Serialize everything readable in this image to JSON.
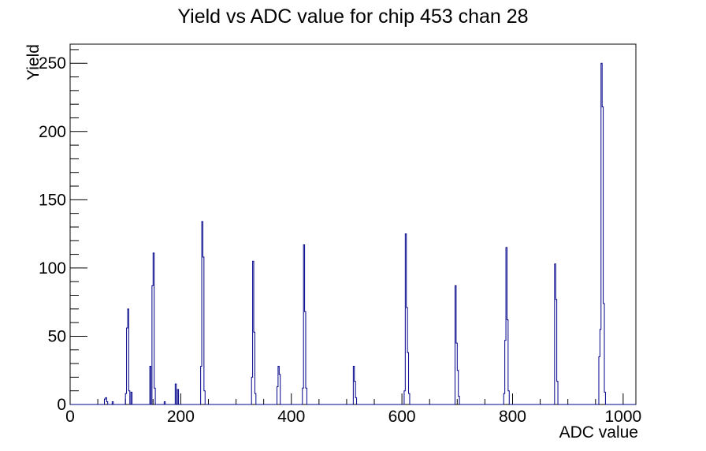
{
  "chart_data": {
    "type": "bar",
    "title": "Yield vs ADC value for chip 453 chan 28",
    "xlabel": "ADC value",
    "ylabel": "Yield",
    "xlim": [
      0,
      1023
    ],
    "ylim": [
      0,
      264
    ],
    "x_major_ticks": [
      0,
      200,
      400,
      600,
      800,
      1000
    ],
    "x_minor_tick_step": 50,
    "y_major_ticks": [
      0,
      50,
      100,
      150,
      200,
      250
    ],
    "y_minor_tick_step": 10,
    "grid": false,
    "legend": false,
    "bin_width": 2,
    "line_color": "#00008b",
    "axis_color": "#000000",
    "background_color": "#ffffff",
    "bins": [
      [
        62,
        4
      ],
      [
        64,
        5
      ],
      [
        66,
        2
      ],
      [
        76,
        2
      ],
      [
        100,
        8
      ],
      [
        102,
        56
      ],
      [
        104,
        70
      ],
      [
        106,
        10
      ],
      [
        110,
        9
      ],
      [
        144,
        28
      ],
      [
        148,
        87
      ],
      [
        150,
        111
      ],
      [
        152,
        12
      ],
      [
        170,
        2
      ],
      [
        190,
        15
      ],
      [
        194,
        11
      ],
      [
        236,
        28
      ],
      [
        238,
        134
      ],
      [
        240,
        108
      ],
      [
        242,
        10
      ],
      [
        328,
        20
      ],
      [
        330,
        105
      ],
      [
        332,
        53
      ],
      [
        334,
        8
      ],
      [
        374,
        13
      ],
      [
        376,
        28
      ],
      [
        378,
        22
      ],
      [
        420,
        12
      ],
      [
        422,
        117
      ],
      [
        424,
        68
      ],
      [
        426,
        12
      ],
      [
        512,
        28
      ],
      [
        514,
        17
      ],
      [
        516,
        5
      ],
      [
        604,
        10
      ],
      [
        606,
        125
      ],
      [
        608,
        71
      ],
      [
        610,
        38
      ],
      [
        612,
        8
      ],
      [
        696,
        87
      ],
      [
        698,
        45
      ],
      [
        700,
        25
      ],
      [
        702,
        6
      ],
      [
        784,
        8
      ],
      [
        786,
        47
      ],
      [
        788,
        115
      ],
      [
        790,
        62
      ],
      [
        792,
        10
      ],
      [
        876,
        103
      ],
      [
        878,
        77
      ],
      [
        880,
        17
      ],
      [
        956,
        35
      ],
      [
        958,
        55
      ],
      [
        960,
        250
      ],
      [
        962,
        218
      ],
      [
        964,
        74
      ],
      [
        966,
        9
      ]
    ]
  }
}
